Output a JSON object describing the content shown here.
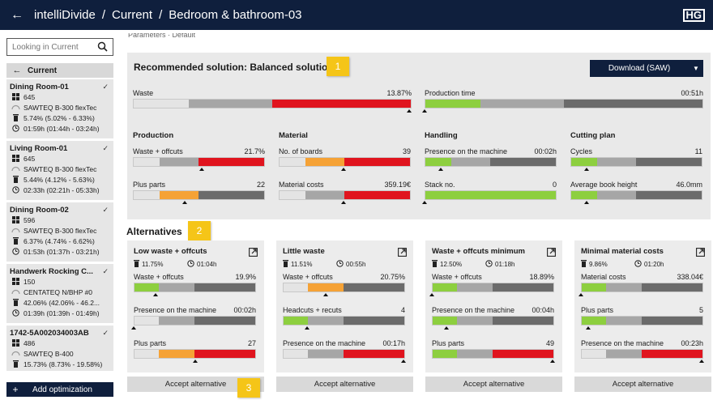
{
  "header": {
    "app": "intelliDivide",
    "crumb1": "Current",
    "crumb2": "Bedroom & bathroom-03",
    "logo": "HG"
  },
  "sidebar": {
    "search_placeholder": "Looking in Current",
    "current_label": "Current",
    "items": [
      {
        "name": "Dining Room-01",
        "boards": "645",
        "machine": "SAWTEQ B-300 flexTec",
        "waste": "5.74% (5.02% - 6.33%)",
        "time": "01:59h (01:44h - 03:24h)"
      },
      {
        "name": "Living Room-01",
        "boards": "645",
        "machine": "SAWTEQ B-300 flexTec",
        "waste": "5.44% (4.12% - 5.63%)",
        "time": "02:33h (02:21h - 05:33h)"
      },
      {
        "name": "Dining Room-02",
        "boards": "596",
        "machine": "SAWTEQ B-300 flexTec",
        "waste": "6.37% (4.74% - 6.62%)",
        "time": "01:53h (01:37h - 03:21h)"
      },
      {
        "name": "Handwerk Rocking C...",
        "boards": "150",
        "machine": "CENTATEQ N/BHP #0",
        "waste": "42.06% (42.06% - 46.2...",
        "time": "01:39h (01:39h - 01:49h)"
      },
      {
        "name": "1742-5A002034003AB",
        "boards": "486",
        "machine": "SAWTEQ B-400",
        "waste": "15.73% (8.73% - 19.58%)",
        "time": ""
      }
    ],
    "add_label": "Add optimization"
  },
  "main": {
    "crumb_cut": "Parameters · Default",
    "rec_title": "Recommended solution: Balanced solution",
    "badge1": "1",
    "badge2": "2",
    "badge3": "3",
    "download_label": "Download (SAW)",
    "waste": {
      "label": "Waste",
      "value": "13.87%"
    },
    "production_time": {
      "label": "Production time",
      "value": "00:51h"
    },
    "sections": {
      "production": "Production",
      "material": "Material",
      "handling": "Handling",
      "cutting_plan": "Cutting plan"
    },
    "metrics": {
      "waste_offcuts": {
        "label": "Waste + offcuts",
        "value": "21.7%"
      },
      "plus_parts": {
        "label": "Plus parts",
        "value": "22"
      },
      "no_boards": {
        "label": "No. of boards",
        "value": "39"
      },
      "material_costs": {
        "label": "Material costs",
        "value": "359.19€"
      },
      "presence": {
        "label": "Presence on the machine",
        "value": "00:02h"
      },
      "stack_no": {
        "label": "Stack no.",
        "value": "0"
      },
      "cycles": {
        "label": "Cycles",
        "value": "11"
      },
      "book_height": {
        "label": "Average book height",
        "value": "46.0mm"
      }
    },
    "alternatives_title": "Alternatives",
    "accept_label": "Accept alternative",
    "alternatives": [
      {
        "title": "Low waste + offcuts",
        "waste": "11.75%",
        "time": "01:04h",
        "m1": {
          "label": "Waste + offcuts",
          "value": "19.9%"
        },
        "m2": {
          "label": "Presence on the machine",
          "value": "00:02h"
        },
        "m3": {
          "label": "Plus parts",
          "value": "27"
        }
      },
      {
        "title": "Little waste",
        "waste": "11.51%",
        "time": "00:55h",
        "m1": {
          "label": "Waste + offcuts",
          "value": "20.75%"
        },
        "m2": {
          "label": "Headcuts + recuts",
          "value": "4"
        },
        "m3": {
          "label": "Presence on the machine",
          "value": "00:17h"
        }
      },
      {
        "title": "Waste + offcuts minimum",
        "waste": "12.50%",
        "time": "01:18h",
        "m1": {
          "label": "Waste + offcuts",
          "value": "18.89%"
        },
        "m2": {
          "label": "Presence on the machine",
          "value": "00:04h"
        },
        "m3": {
          "label": "Plus parts",
          "value": "49"
        }
      },
      {
        "title": "Minimal material costs",
        "waste": "9.86%",
        "time": "01:20h",
        "m1": {
          "label": "Material costs",
          "value": "338.04€"
        },
        "m2": {
          "label": "Plus parts",
          "value": "5"
        },
        "m3": {
          "label": "Presence on the machine",
          "value": "00:23h"
        }
      }
    ]
  },
  "colors": {
    "navy": "#0f1f3d",
    "green": "#8dcf3f",
    "orange": "#f5a236",
    "red": "#e0141e",
    "light_grey": "#e4e4e4",
    "mid_grey": "#a6a6a6",
    "dark_grey": "#6b6b6b",
    "badge": "#f5c518"
  }
}
